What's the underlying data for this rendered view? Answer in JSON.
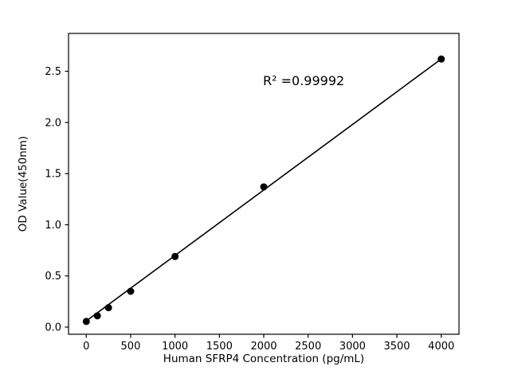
{
  "figure": {
    "background": "#ffffff",
    "plot_color": "#000000"
  },
  "chart_data": {
    "type": "scatter",
    "title": "",
    "xlabel": "Human SFRP4 Concentration (pg/mL)",
    "ylabel": "OD Value(450nm)",
    "annotation": "R² =0.99992",
    "x": [
      0,
      125,
      250,
      500,
      1000,
      2000,
      4000
    ],
    "y": [
      0.055,
      0.11,
      0.19,
      0.35,
      0.69,
      1.37,
      2.62
    ],
    "trendline": {
      "x": [
        0,
        4000
      ],
      "y": [
        0.06,
        2.62
      ]
    },
    "xlim": [
      -200,
      4200
    ],
    "ylim": [
      -0.07,
      2.87
    ],
    "x_ticks": [
      {
        "v": 0,
        "label": "0"
      },
      {
        "v": 500,
        "label": "500"
      },
      {
        "v": 1000,
        "label": "1000"
      },
      {
        "v": 1500,
        "label": "1500"
      },
      {
        "v": 2000,
        "label": "2000"
      },
      {
        "v": 2500,
        "label": "2500"
      },
      {
        "v": 3000,
        "label": "3000"
      },
      {
        "v": 3500,
        "label": "3500"
      },
      {
        "v": 4000,
        "label": "4000"
      }
    ],
    "y_ticks": [
      {
        "v": 0.0,
        "label": "0.0"
      },
      {
        "v": 0.5,
        "label": "0.5"
      },
      {
        "v": 1.0,
        "label": "1.0"
      },
      {
        "v": 1.5,
        "label": "1.5"
      },
      {
        "v": 2.0,
        "label": "2.0"
      },
      {
        "v": 2.5,
        "label": "2.5"
      }
    ],
    "legend": null,
    "grid": false,
    "marker": {
      "shape": "circle",
      "radius": 4.5,
      "color": "#000000"
    },
    "line": {
      "width": 1.6,
      "color": "#000000"
    }
  }
}
